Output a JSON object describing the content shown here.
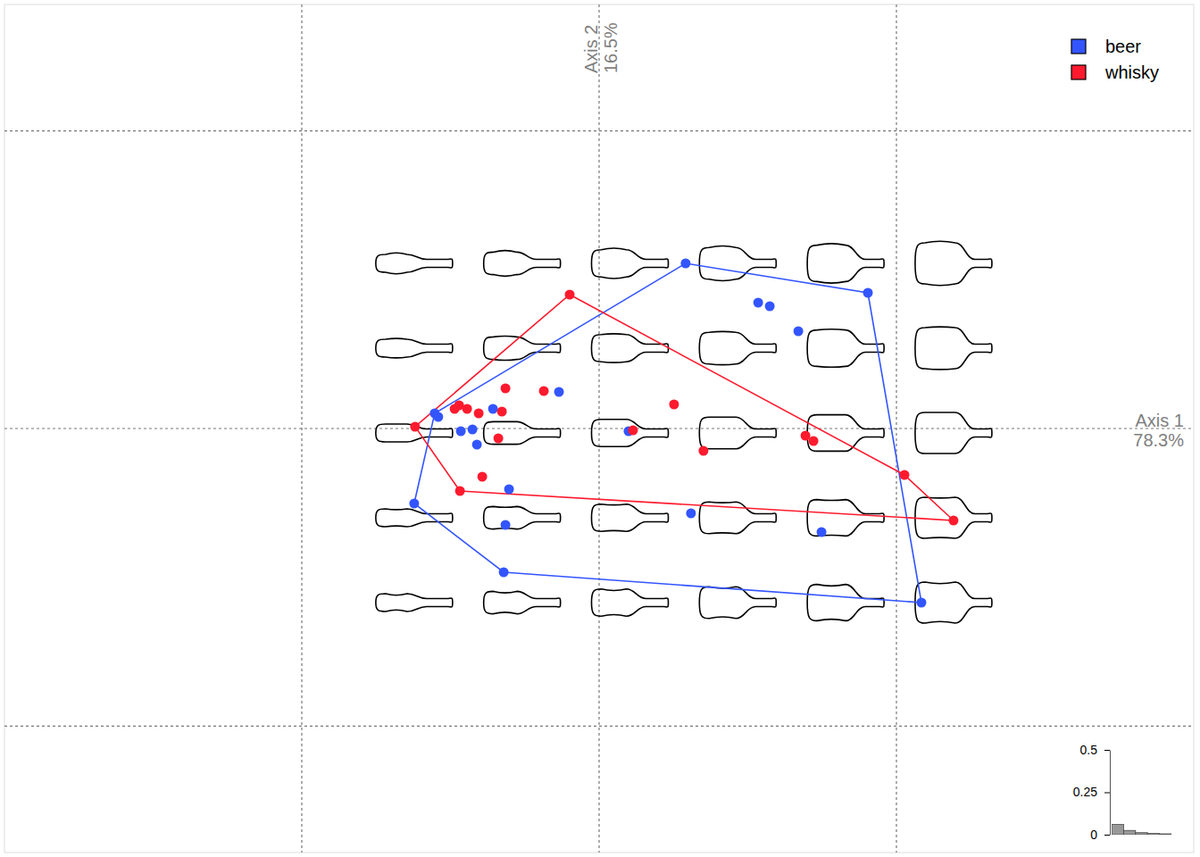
{
  "chart_data": [
    {
      "type": "scatter",
      "x_label": [
        "Axis 1",
        "78.3%"
      ],
      "y_label": [
        "Axis 2",
        "16.5%"
      ],
      "xlim": [
        -0.2,
        0.2
      ],
      "ylim": [
        -0.1425,
        0.1425
      ],
      "xticks": [
        -0.1,
        0,
        0.1
      ],
      "yticks": [
        -0.1,
        0,
        0.1
      ],
      "grid": true,
      "tick_labels": false,
      "legend": "top-right",
      "marker": "circle",
      "series": [
        {
          "name": "beer",
          "color": "#3355ff",
          "x": [
            0.0291,
            0.0904,
            0.0535,
            0.0574,
            0.067,
            -0.0135,
            -0.0357,
            -0.0553,
            -0.0541,
            -0.0426,
            -0.0465,
            -0.0411,
            0.0099,
            -0.0303,
            -0.0622,
            -0.0315,
            0.0309,
            0.0748,
            -0.0321,
            0.1084
          ],
          "values": [
            0.0555,
            0.0456,
            0.0423,
            0.0411,
            0.0327,
            0.0123,
            0.0066,
            0.0051,
            0.0039,
            -0.0003,
            -0.0009,
            -0.0054,
            -0.0009,
            -0.0204,
            -0.0252,
            -0.0324,
            -0.0285,
            -0.0348,
            -0.0483,
            -0.0585
          ]
        },
        {
          "name": "whisky",
          "color": "#ff1a2e",
          "x": [
            -0.0099,
            -0.0315,
            -0.0186,
            -0.0471,
            -0.0486,
            -0.0444,
            -0.0405,
            -0.0327,
            -0.0619,
            -0.0339,
            -0.0393,
            -0.0468,
            0.0114,
            0.0252,
            0.0351,
            0.0694,
            0.0721,
            0.1027,
            0.1192
          ],
          "values": [
            0.045,
            0.0135,
            0.0126,
            0.0078,
            0.0066,
            0.0066,
            0.0051,
            0.0057,
            0.0006,
            -0.0033,
            -0.0162,
            -0.021,
            -0.0006,
            0.0081,
            -0.0075,
            -0.0024,
            -0.0042,
            -0.0156,
            -0.0309
          ]
        }
      ]
    },
    {
      "type": "bar",
      "categories": [
        null,
        null,
        null,
        null,
        null
      ],
      "values": [
        0.06,
        0.025,
        0.012,
        0.007,
        0.005
      ],
      "color": "#999999",
      "ylim": [
        0,
        0.5
      ],
      "yticks": [
        0,
        0.25,
        0.5
      ],
      "tick_labels": "y"
    }
  ]
}
